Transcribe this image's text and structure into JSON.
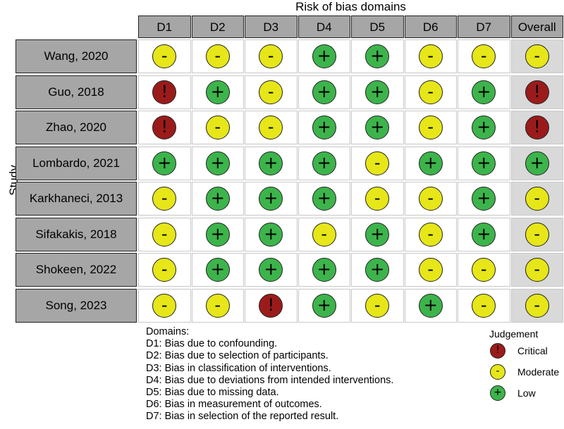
{
  "chart_data": {
    "type": "table",
    "title": "Risk of bias domains",
    "ylabel": "Study",
    "columns": [
      "D1",
      "D2",
      "D3",
      "D4",
      "D5",
      "D6",
      "D7",
      "Overall"
    ],
    "rows": [
      {
        "study": "Wang, 2020",
        "judgements": [
          "Moderate",
          "Moderate",
          "Moderate",
          "Low",
          "Low",
          "Moderate",
          "Moderate",
          "Moderate"
        ]
      },
      {
        "study": "Guo, 2018",
        "judgements": [
          "Critical",
          "Low",
          "Moderate",
          "Low",
          "Low",
          "Moderate",
          "Low",
          "Critical"
        ]
      },
      {
        "study": "Zhao, 2020",
        "judgements": [
          "Critical",
          "Moderate",
          "Moderate",
          "Low",
          "Low",
          "Moderate",
          "Low",
          "Critical"
        ]
      },
      {
        "study": "Lombardo, 2021",
        "judgements": [
          "Low",
          "Low",
          "Low",
          "Low",
          "Moderate",
          "Low",
          "Low",
          "Low"
        ]
      },
      {
        "study": "Karkhaneci, 2013",
        "judgements": [
          "Moderate",
          "Low",
          "Low",
          "Low",
          "Moderate",
          "Moderate",
          "Low",
          "Moderate"
        ]
      },
      {
        "study": "Sifakakis, 2018",
        "judgements": [
          "Moderate",
          "Low",
          "Low",
          "Moderate",
          "Low",
          "Moderate",
          "Low",
          "Moderate"
        ]
      },
      {
        "study": "Shokeen, 2022",
        "judgements": [
          "Moderate",
          "Low",
          "Low",
          "Low",
          "Low",
          "Moderate",
          "Moderate",
          "Moderate"
        ]
      },
      {
        "study": "Song, 2023",
        "judgements": [
          "Moderate",
          "Moderate",
          "Critical",
          "Low",
          "Moderate",
          "Low",
          "Moderate",
          "Moderate"
        ]
      }
    ],
    "symbols": {
      "Low": "+",
      "Moderate": "-",
      "Critical": "!"
    },
    "colors": {
      "Low": "#3cb44b",
      "Moderate": "#e6e619",
      "Critical": "#9b1b1b"
    }
  },
  "domains": {
    "heading": "Domains:",
    "items": [
      "D1: Bias due to confounding.",
      "D2: Bias due to selection of participants.",
      "D3: Bias in classification of interventions.",
      "D4: Bias due to deviations from intended interventions.",
      "D5: Bias due to missing data.",
      "D6: Bias in measurement of outcomes.",
      "D7: Bias in selection of the reported result."
    ]
  },
  "legend": {
    "title": "Judgement",
    "items": [
      {
        "label": "Critical",
        "level": "Critical",
        "symbol": "!"
      },
      {
        "label": "Moderate",
        "level": "Moderate",
        "symbol": "-"
      },
      {
        "label": "Low",
        "level": "Low",
        "symbol": "+"
      }
    ]
  }
}
